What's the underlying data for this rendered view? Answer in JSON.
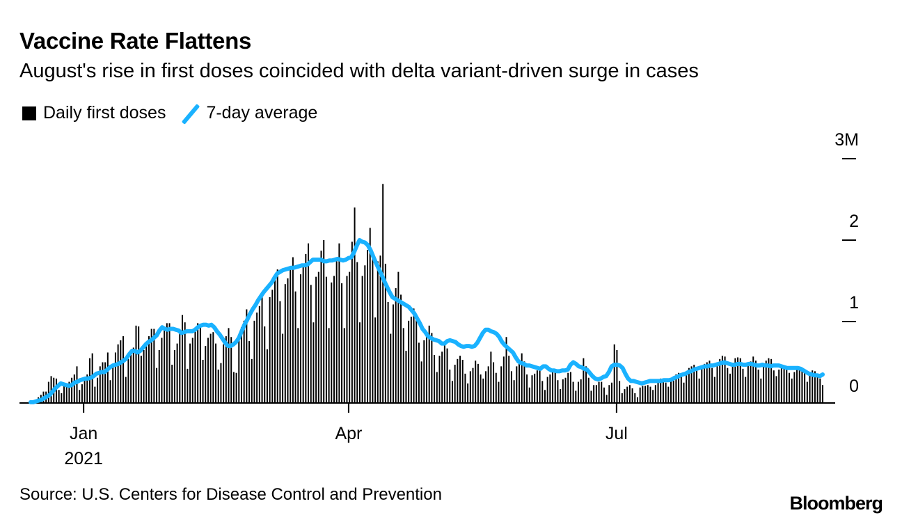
{
  "title": "Vaccine Rate Flattens",
  "subtitle": "August's rise in first doses coincided with delta variant-driven surge in cases",
  "legend": {
    "bars": "Daily first doses",
    "line": "7-day average"
  },
  "source": "Source: U.S. Centers for Disease Control and Prevention",
  "logo": "Bloomberg",
  "chart_data": {
    "type": "bar",
    "ylim": [
      0,
      3
    ],
    "y_unit": "M",
    "yticks": [
      {
        "value": 0,
        "label": "0"
      },
      {
        "value": 1,
        "label": "1"
      },
      {
        "value": 2,
        "label": "2"
      },
      {
        "value": 3,
        "label": "3M"
      }
    ],
    "xticks": [
      {
        "date": "2021-01-01",
        "label": "Jan",
        "sublabel": "2021"
      },
      {
        "date": "2021-04-01",
        "label": "Apr"
      },
      {
        "date": "2021-07-01",
        "label": "Jul"
      }
    ],
    "legend_position": "top-left",
    "grid": false,
    "colors": {
      "bars": "#000000",
      "line": "#1AB2FF"
    },
    "series": [
      {
        "name": "Daily first doses",
        "type": "bar",
        "start_date": "2020-12-14",
        "end_date": "2021-09-09",
        "values": [
          0.01,
          0.02,
          0.04,
          0.07,
          0.1,
          0.14,
          0.14,
          0.26,
          0.33,
          0.31,
          0.3,
          0.16,
          0.12,
          0.23,
          0.24,
          0.26,
          0.31,
          0.35,
          0.45,
          0.16,
          0.23,
          0.3,
          0.35,
          0.55,
          0.61,
          0.2,
          0.31,
          0.45,
          0.5,
          0.5,
          0.62,
          0.28,
          0.45,
          0.62,
          0.72,
          0.77,
          0.82,
          0.32,
          0.54,
          0.65,
          0.68,
          0.95,
          0.94,
          0.58,
          0.65,
          0.75,
          0.82,
          0.91,
          0.91,
          0.43,
          0.65,
          0.8,
          0.91,
          0.98,
          0.98,
          0.47,
          0.65,
          0.73,
          0.86,
          1.08,
          0.99,
          0.42,
          0.73,
          0.8,
          0.91,
          0.98,
          0.97,
          0.53,
          0.7,
          0.8,
          0.85,
          0.87,
          0.73,
          0.41,
          0.49,
          0.72,
          0.82,
          0.92,
          0.81,
          0.38,
          0.37,
          0.83,
          0.93,
          1.01,
          1.15,
          0.76,
          0.54,
          1.01,
          1.11,
          1.19,
          1.31,
          0.94,
          0.66,
          1.3,
          1.39,
          1.57,
          1.64,
          1.25,
          0.85,
          1.46,
          1.53,
          1.66,
          1.79,
          1.37,
          0.92,
          1.58,
          1.68,
          1.83,
          1.96,
          1.45,
          0.99,
          1.55,
          1.61,
          1.87,
          2.0,
          1.55,
          0.92,
          1.48,
          1.56,
          1.74,
          1.96,
          1.47,
          0.92,
          1.56,
          1.61,
          1.98,
          2.4,
          1.73,
          0.99,
          1.56,
          1.69,
          1.88,
          2.15,
          1.78,
          1.05,
          1.74,
          1.81,
          2.69,
          1.71,
          1.24,
          0.85,
          1.21,
          1.41,
          1.61,
          1.33,
          0.92,
          0.64,
          1.01,
          1.06,
          1.16,
          1.08,
          0.74,
          0.51,
          0.77,
          0.84,
          0.95,
          0.86,
          0.59,
          0.38,
          0.58,
          0.63,
          0.72,
          0.67,
          0.41,
          0.27,
          0.47,
          0.54,
          0.58,
          0.53,
          0.36,
          0.24,
          0.39,
          0.43,
          0.52,
          0.48,
          0.35,
          0.3,
          0.39,
          0.45,
          0.63,
          0.5,
          0.37,
          0.26,
          0.45,
          0.57,
          0.81,
          0.58,
          0.39,
          0.28,
          0.45,
          0.51,
          0.61,
          0.51,
          0.35,
          0.19,
          0.34,
          0.36,
          0.4,
          0.4,
          0.27,
          0.16,
          0.32,
          0.35,
          0.42,
          0.39,
          0.28,
          0.17,
          0.29,
          0.31,
          0.37,
          0.38,
          0.26,
          0.15,
          0.26,
          0.29,
          0.55,
          0.45,
          0.31,
          0.15,
          0.22,
          0.22,
          0.26,
          0.26,
          0.19,
          0.1,
          0.22,
          0.25,
          0.72,
          0.65,
          0.27,
          0.12,
          0.17,
          0.2,
          0.22,
          0.18,
          0.12,
          0.07,
          0.19,
          0.21,
          0.21,
          0.22,
          0.2,
          0.16,
          0.22,
          0.26,
          0.3,
          0.27,
          0.25,
          0.2,
          0.28,
          0.32,
          0.35,
          0.37,
          0.33,
          0.25,
          0.38,
          0.43,
          0.45,
          0.47,
          0.41,
          0.3,
          0.45,
          0.48,
          0.5,
          0.52,
          0.43,
          0.32,
          0.5,
          0.54,
          0.58,
          0.57,
          0.43,
          0.36,
          0.48,
          0.55,
          0.56,
          0.55,
          0.42,
          0.32,
          0.48,
          0.51,
          0.57,
          0.52,
          0.41,
          0.3,
          0.44,
          0.52,
          0.55,
          0.54,
          0.4,
          0.33,
          0.41,
          0.44,
          0.44,
          0.43,
          0.37,
          0.3,
          0.38,
          0.42,
          0.44,
          0.42,
          0.37,
          0.26,
          0.34,
          0.4,
          0.39,
          0.36,
          0.3,
          0.22
        ]
      },
      {
        "name": "7-day average",
        "type": "line",
        "start_date": "2020-12-14",
        "end_date": "2021-09-09",
        "values": [
          0.01,
          0.01,
          0.02,
          0.03,
          0.04,
          0.06,
          0.08,
          0.1,
          0.14,
          0.18,
          0.21,
          0.24,
          0.23,
          0.22,
          0.21,
          0.22,
          0.25,
          0.26,
          0.28,
          0.29,
          0.3,
          0.3,
          0.31,
          0.33,
          0.36,
          0.37,
          0.38,
          0.38,
          0.41,
          0.44,
          0.46,
          0.47,
          0.48,
          0.5,
          0.52,
          0.55,
          0.6,
          0.64,
          0.64,
          0.62,
          0.64,
          0.68,
          0.72,
          0.75,
          0.77,
          0.8,
          0.83,
          0.89,
          0.93,
          0.91,
          0.9,
          0.91,
          0.91,
          0.9,
          0.89,
          0.86,
          0.87,
          0.88,
          0.88,
          0.88,
          0.9,
          0.93,
          0.95,
          0.96,
          0.96,
          0.95,
          0.96,
          0.93,
          0.88,
          0.84,
          0.79,
          0.74,
          0.7,
          0.7,
          0.72,
          0.75,
          0.8,
          0.88,
          0.96,
          1.02,
          1.09,
          1.15,
          1.2,
          1.26,
          1.31,
          1.36,
          1.4,
          1.44,
          1.48,
          1.54,
          1.59,
          1.61,
          1.63,
          1.64,
          1.65,
          1.66,
          1.66,
          1.67,
          1.68,
          1.69,
          1.69,
          1.7,
          1.73,
          1.76,
          1.76,
          1.76,
          1.76,
          1.74,
          1.74,
          1.75,
          1.75,
          1.76,
          1.77,
          1.76,
          1.75,
          1.76,
          1.78,
          1.79,
          1.85,
          1.93,
          2.0,
          1.98,
          1.97,
          1.94,
          1.88,
          1.8,
          1.72,
          1.65,
          1.58,
          1.5,
          1.43,
          1.36,
          1.3,
          1.28,
          1.26,
          1.24,
          1.22,
          1.2,
          1.18,
          1.14,
          1.1,
          1.04,
          0.98,
          0.91,
          0.87,
          0.82,
          0.8,
          0.78,
          0.77,
          0.76,
          0.73,
          0.73,
          0.76,
          0.77,
          0.76,
          0.75,
          0.72,
          0.7,
          0.69,
          0.7,
          0.7,
          0.69,
          0.7,
          0.74,
          0.8,
          0.86,
          0.9,
          0.9,
          0.88,
          0.87,
          0.85,
          0.81,
          0.75,
          0.71,
          0.68,
          0.65,
          0.62,
          0.56,
          0.51,
          0.49,
          0.48,
          0.46,
          0.46,
          0.45,
          0.44,
          0.43,
          0.42,
          0.45,
          0.45,
          0.42,
          0.4,
          0.4,
          0.39,
          0.39,
          0.4,
          0.4,
          0.41,
          0.47,
          0.5,
          0.48,
          0.45,
          0.44,
          0.42,
          0.41,
          0.37,
          0.33,
          0.3,
          0.29,
          0.3,
          0.32,
          0.33,
          0.38,
          0.45,
          0.47,
          0.47,
          0.46,
          0.43,
          0.36,
          0.3,
          0.27,
          0.27,
          0.26,
          0.25,
          0.24,
          0.25,
          0.26,
          0.27,
          0.27,
          0.27,
          0.27,
          0.27,
          0.28,
          0.28,
          0.28,
          0.29,
          0.31,
          0.32,
          0.34,
          0.35,
          0.36,
          0.38,
          0.39,
          0.41,
          0.42,
          0.43,
          0.44,
          0.45,
          0.45,
          0.46,
          0.46,
          0.47,
          0.48,
          0.49,
          0.5,
          0.49,
          0.48,
          0.47,
          0.47,
          0.48,
          0.48,
          0.47,
          0.47,
          0.48,
          0.48,
          0.47,
          0.46,
          0.46,
          0.47,
          0.46,
          0.46,
          0.45,
          0.46,
          0.46,
          0.46,
          0.45,
          0.44,
          0.43,
          0.43,
          0.43,
          0.43,
          0.43,
          0.42,
          0.4,
          0.38,
          0.36,
          0.35,
          0.34,
          0.34,
          0.33,
          0.35
        ]
      }
    ]
  }
}
